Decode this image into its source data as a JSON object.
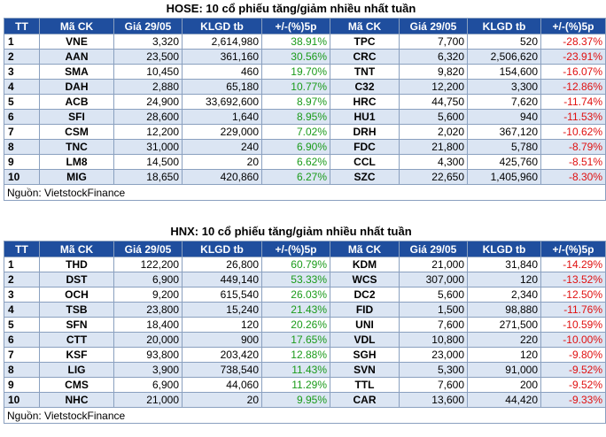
{
  "hose": {
    "title": "HOSE: 10 cổ phiếu tăng/giảm nhiều nhất tuần",
    "headers": [
      "TT",
      "Mã CK",
      "Giá 29/05",
      "KLGD tb",
      "+/-(%)5p",
      "Mã CK",
      "Giá 29/05",
      "KLGD tb",
      "+/-(%)5p"
    ],
    "rows": [
      {
        "tt": "1",
        "up_code": "VNE",
        "up_price": "3,320",
        "up_vol": "2,614,980",
        "up_pct": "38.91%",
        "down_code": "TPC",
        "down_price": "7,700",
        "down_vol": "520",
        "down_pct": "-28.37%"
      },
      {
        "tt": "2",
        "up_code": "AAN",
        "up_price": "23,500",
        "up_vol": "361,160",
        "up_pct": "30.56%",
        "down_code": "CRC",
        "down_price": "6,320",
        "down_vol": "2,506,620",
        "down_pct": "-23.91%"
      },
      {
        "tt": "3",
        "up_code": "SMA",
        "up_price": "10,450",
        "up_vol": "460",
        "up_pct": "19.70%",
        "down_code": "TNT",
        "down_price": "9,820",
        "down_vol": "154,600",
        "down_pct": "-16.07%"
      },
      {
        "tt": "4",
        "up_code": "DAH",
        "up_price": "2,880",
        "up_vol": "65,180",
        "up_pct": "10.77%",
        "down_code": "C32",
        "down_price": "12,200",
        "down_vol": "3,300",
        "down_pct": "-12.86%"
      },
      {
        "tt": "5",
        "up_code": "ACB",
        "up_price": "24,900",
        "up_vol": "33,692,600",
        "up_pct": "8.97%",
        "down_code": "HRC",
        "down_price": "44,750",
        "down_vol": "7,620",
        "down_pct": "-11.74%"
      },
      {
        "tt": "6",
        "up_code": "SFI",
        "up_price": "28,600",
        "up_vol": "1,640",
        "up_pct": "8.95%",
        "down_code": "HU1",
        "down_price": "5,600",
        "down_vol": "940",
        "down_pct": "-11.53%"
      },
      {
        "tt": "7",
        "up_code": "CSM",
        "up_price": "12,200",
        "up_vol": "229,000",
        "up_pct": "7.02%",
        "down_code": "DRH",
        "down_price": "2,020",
        "down_vol": "367,120",
        "down_pct": "-10.62%"
      },
      {
        "tt": "8",
        "up_code": "TNC",
        "up_price": "31,000",
        "up_vol": "240",
        "up_pct": "6.90%",
        "down_code": "FDC",
        "down_price": "21,800",
        "down_vol": "5,780",
        "down_pct": "-8.79%"
      },
      {
        "tt": "9",
        "up_code": "LM8",
        "up_price": "14,500",
        "up_vol": "20",
        "up_pct": "6.62%",
        "down_code": "CCL",
        "down_price": "4,300",
        "down_vol": "425,760",
        "down_pct": "-8.51%"
      },
      {
        "tt": "10",
        "up_code": "MIG",
        "up_price": "18,650",
        "up_vol": "420,860",
        "up_pct": "6.27%",
        "down_code": "SZC",
        "down_price": "22,650",
        "down_vol": "1,405,960",
        "down_pct": "-8.30%"
      }
    ],
    "source": "Nguồn: VietstockFinance"
  },
  "hnx": {
    "title": "HNX: 10 cổ phiếu tăng/giảm nhiều nhất tuần",
    "headers": [
      "TT",
      "Mã CK",
      "Giá 29/05",
      "KLGD tb",
      "+/-(%)5p",
      "Mã CK",
      "Giá 29/05",
      "KLGD tb",
      "+/-(%)5p"
    ],
    "rows": [
      {
        "tt": "1",
        "up_code": "THD",
        "up_price": "122,200",
        "up_vol": "26,800",
        "up_pct": "60.79%",
        "down_code": "KDM",
        "down_price": "21,000",
        "down_vol": "31,840",
        "down_pct": "-14.29%"
      },
      {
        "tt": "2",
        "up_code": "DST",
        "up_price": "6,900",
        "up_vol": "449,140",
        "up_pct": "53.33%",
        "down_code": "WCS",
        "down_price": "307,000",
        "down_vol": "120",
        "down_pct": "-13.52%"
      },
      {
        "tt": "3",
        "up_code": "OCH",
        "up_price": "9,200",
        "up_vol": "615,540",
        "up_pct": "26.03%",
        "down_code": "DC2",
        "down_price": "5,600",
        "down_vol": "2,340",
        "down_pct": "-12.50%"
      },
      {
        "tt": "4",
        "up_code": "TSB",
        "up_price": "23,800",
        "up_vol": "15,240",
        "up_pct": "21.43%",
        "down_code": "FID",
        "down_price": "1,500",
        "down_vol": "98,880",
        "down_pct": "-11.76%"
      },
      {
        "tt": "5",
        "up_code": "SFN",
        "up_price": "18,400",
        "up_vol": "120",
        "up_pct": "20.26%",
        "down_code": "UNI",
        "down_price": "7,600",
        "down_vol": "271,500",
        "down_pct": "-10.59%"
      },
      {
        "tt": "6",
        "up_code": "CTT",
        "up_price": "20,000",
        "up_vol": "900",
        "up_pct": "17.65%",
        "down_code": "VDL",
        "down_price": "10,800",
        "down_vol": "220",
        "down_pct": "-10.00%"
      },
      {
        "tt": "7",
        "up_code": "KSF",
        "up_price": "93,800",
        "up_vol": "203,420",
        "up_pct": "12.88%",
        "down_code": "SGH",
        "down_price": "23,000",
        "down_vol": "120",
        "down_pct": "-9.80%"
      },
      {
        "tt": "8",
        "up_code": "LIG",
        "up_price": "3,900",
        "up_vol": "738,540",
        "up_pct": "11.43%",
        "down_code": "SVN",
        "down_price": "5,300",
        "down_vol": "91,000",
        "down_pct": "-9.52%"
      },
      {
        "tt": "9",
        "up_code": "CMS",
        "up_price": "6,900",
        "up_vol": "44,060",
        "up_pct": "11.29%",
        "down_code": "TTL",
        "down_price": "7,600",
        "down_vol": "200",
        "down_pct": "-9.52%"
      },
      {
        "tt": "10",
        "up_code": "NHC",
        "up_price": "21,000",
        "up_vol": "20",
        "up_pct": "9.95%",
        "down_code": "CAR",
        "down_price": "13,600",
        "down_vol": "44,420",
        "down_pct": "-9.33%"
      }
    ],
    "source": "Nguồn: VietstockFinance"
  },
  "colors": {
    "header_bg": "#1f4e9e",
    "row_alt_bg": "#dbe5f3",
    "gain": "#1a9b1a",
    "loss": "#e01010"
  }
}
